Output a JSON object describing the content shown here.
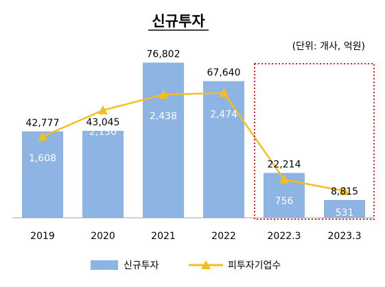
{
  "chart_data": {
    "type": "bar",
    "title": "신규투자",
    "unit_note": "(단위: 개사, 억원)",
    "categories": [
      "2019",
      "2020",
      "2021",
      "2022",
      "2022.3",
      "2023.3"
    ],
    "series": [
      {
        "name": "신규투자",
        "kind": "bar",
        "axis": "left",
        "color": "#8eb4e3",
        "values": [
          42777,
          43045,
          76802,
          67640,
          22214,
          8815
        ],
        "labels": [
          "42,777",
          "43,045",
          "76,802",
          "67,640",
          "22,214",
          "8,815"
        ]
      },
      {
        "name": "피투자기업수",
        "kind": "line",
        "axis": "right",
        "color": "#f5be1e",
        "values": [
          1608,
          2130,
          2438,
          2474,
          756,
          531
        ],
        "labels": [
          "1,608",
          "2,130",
          "2,438",
          "2,474",
          "756",
          "531"
        ]
      }
    ],
    "ylim_left": [
      0,
      80000
    ],
    "ylim_right": [
      0,
      3200
    ],
    "highlight": {
      "from_category": "2022.3",
      "to_category": "2023.3",
      "style": "dotted",
      "color": "#e02020"
    },
    "legend_position": "bottom",
    "grid": false
  }
}
